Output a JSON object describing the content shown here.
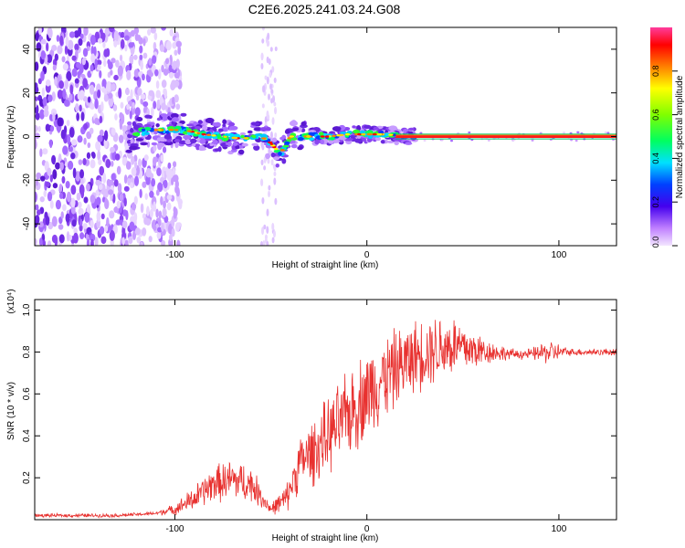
{
  "title": "C2E6.2025.241.03.24.G08",
  "chart_data": [
    {
      "type": "heatmap",
      "xlabel": "Height of straight line (km)",
      "ylabel": "Frequency (Hz)",
      "xlim": [
        -173,
        130
      ],
      "ylim": [
        -50,
        50
      ],
      "xticks": [
        -100,
        0,
        100
      ],
      "yticks": [
        -40,
        -20,
        0,
        20,
        40
      ],
      "colorbar": {
        "label": "Normalized spectral amplitude",
        "range": [
          0,
          1
        ],
        "ticks": [
          "0.0",
          "0.2",
          "0.4",
          "0.6",
          "0.8"
        ]
      },
      "ridge": {
        "description_points": [
          [
            -120,
            2
          ],
          [
            -110,
            3
          ],
          [
            -95,
            3
          ],
          [
            -85,
            1
          ],
          [
            -75,
            0
          ],
          [
            -65,
            -1
          ],
          [
            -55,
            0
          ],
          [
            -50,
            -3
          ],
          [
            -45,
            -8
          ],
          [
            -40,
            0
          ],
          [
            -30,
            0
          ],
          [
            -20,
            0
          ],
          [
            -10,
            1
          ],
          [
            0,
            1
          ],
          [
            10,
            1
          ],
          [
            20,
            0
          ],
          [
            60,
            0
          ],
          [
            100,
            0
          ],
          [
            130,
            0
          ]
        ],
        "steady_from_km": 15
      },
      "clutter": [
        [
          -173,
          -97
        ],
        [
          -60,
          -45
        ]
      ]
    },
    {
      "type": "line",
      "xlabel": "Height of straight line (km)",
      "ylabel": "SNR (10 * v/v)",
      "y_multiplier": "(x10⁴)",
      "xlim": [
        -173,
        130
      ],
      "ylim": [
        0,
        1.05
      ],
      "xticks": [
        -100,
        0,
        100
      ],
      "yticks": [
        "0.2",
        "0.4",
        "0.6",
        "0.8",
        "1.0"
      ],
      "color": "#e8312f",
      "envelope_x": [
        -173,
        -130,
        -110,
        -100,
        -90,
        -80,
        -70,
        -60,
        -50,
        -42,
        -35,
        -25,
        -15,
        -5,
        5,
        15,
        25,
        35,
        45,
        55,
        65,
        75,
        85,
        95,
        105,
        130
      ],
      "envelope_y": [
        0.02,
        0.02,
        0.03,
        0.05,
        0.1,
        0.17,
        0.19,
        0.17,
        0.05,
        0.1,
        0.27,
        0.35,
        0.45,
        0.55,
        0.65,
        0.72,
        0.78,
        0.82,
        0.83,
        0.81,
        0.8,
        0.79,
        0.79,
        0.8,
        0.8,
        0.8
      ],
      "noise_amplitude": [
        0.01,
        0.01,
        0.01,
        0.03,
        0.07,
        0.1,
        0.12,
        0.1,
        0.03,
        0.08,
        0.15,
        0.2,
        0.22,
        0.25,
        0.25,
        0.22,
        0.2,
        0.2,
        0.18,
        0.12,
        0.06,
        0.03,
        0.03,
        0.07,
        0.02,
        0.02
      ]
    }
  ]
}
